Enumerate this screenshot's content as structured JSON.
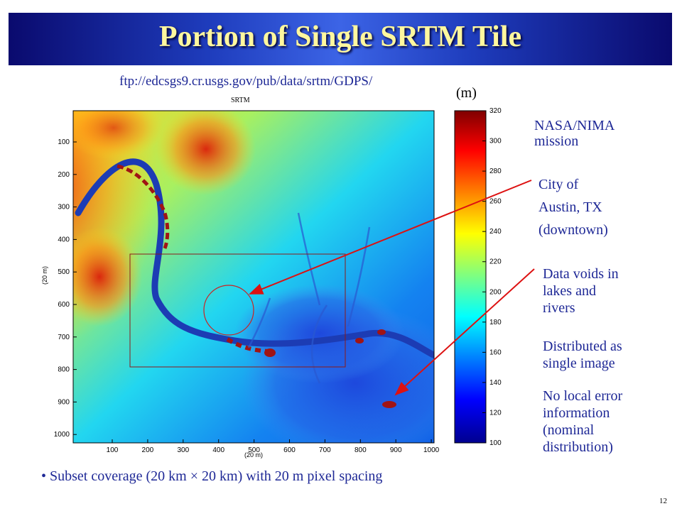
{
  "slide": {
    "title": "Portion of Single SRTM Tile",
    "url": "ftp://edcsgs9.cr.usgs.gov/pub/data/srtm/GDPS/",
    "map_title": "SRTM",
    "colorbar_unit": "(m)",
    "page_number": "12",
    "bullet": "Subset coverage (20 km × 20 km) with 20 m pixel spacing"
  },
  "annotations": {
    "mission": [
      "NASA/NIMA",
      "mission"
    ],
    "city": [
      "City of",
      "Austin, TX",
      "(downtown)"
    ],
    "voids": [
      "Data voids in",
      "lakes and",
      "rivers"
    ],
    "distributed": [
      "Distributed as",
      "single image"
    ],
    "error": [
      "No local error",
      "information",
      "(nominal",
      "distribution)"
    ]
  },
  "axes": {
    "xlabel": "(20 m)",
    "ylabel": "(20 m)",
    "x_ticks": [
      "100",
      "200",
      "300",
      "400",
      "500",
      "600",
      "700",
      "800",
      "900",
      "1000"
    ],
    "y_ticks": [
      "100",
      "200",
      "300",
      "400",
      "500",
      "600",
      "700",
      "800",
      "900",
      "1000"
    ],
    "colorbar_ticks": [
      "320",
      "300",
      "280",
      "260",
      "240",
      "220",
      "200",
      "180",
      "160",
      "140",
      "120",
      "100"
    ]
  },
  "colors": {
    "title_text": "#fff79e",
    "annotation_text": "#1e2896",
    "arrow": "#dd1111"
  }
}
